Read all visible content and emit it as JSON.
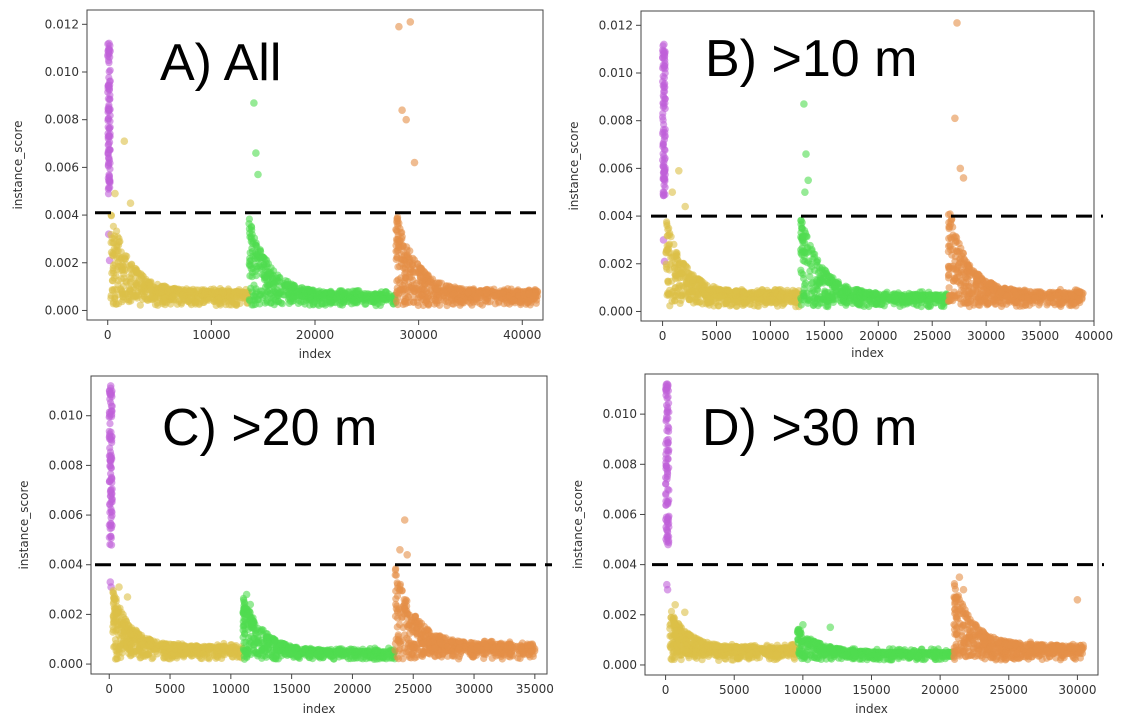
{
  "chart_data": [
    {
      "type": "scatter",
      "title": "A) All",
      "xlabel": "index",
      "ylabel": "instance_score",
      "xlim": [
        -2000,
        42000
      ],
      "ylim": [
        -0.0004,
        0.0126
      ],
      "xticks": [
        0,
        10000,
        20000,
        30000,
        40000
      ],
      "yticks": [
        0.0,
        0.002,
        0.004,
        0.006,
        0.008,
        0.01,
        0.012
      ],
      "threshold": 0.0041,
      "grid": false,
      "series": [
        {
          "color": "#c061d8",
          "x_range": [
            0,
            250
          ],
          "base": 0.006,
          "peak": 0.0112,
          "outliers": [
            [
              120,
              0.0112
            ],
            [
              60,
              0.0109
            ],
            [
              180,
              0.0021
            ],
            [
              90,
              0.0032
            ]
          ]
        },
        {
          "color": "#dcc048",
          "x_range": [
            300,
            13600
          ],
          "base": 0.0008,
          "peak": 0.0042,
          "outliers": [
            [
              700,
              0.0049
            ],
            [
              1600,
              0.0071
            ],
            [
              2200,
              0.0045
            ]
          ]
        },
        {
          "color": "#50dc50",
          "x_range": [
            13600,
            27800
          ],
          "base": 0.0007,
          "peak": 0.004,
          "outliers": [
            [
              14100,
              0.0087
            ],
            [
              14300,
              0.0066
            ],
            [
              14500,
              0.0057
            ]
          ]
        },
        {
          "color": "#e49048",
          "x_range": [
            27800,
            41500
          ],
          "base": 0.0008,
          "peak": 0.0042,
          "outliers": [
            [
              28100,
              0.0119
            ],
            [
              29200,
              0.0121
            ],
            [
              28400,
              0.0084
            ],
            [
              28800,
              0.008
            ],
            [
              29600,
              0.0062
            ]
          ]
        }
      ]
    },
    {
      "type": "scatter",
      "title": "B) >10 m",
      "xlabel": "index",
      "ylabel": "instance_score",
      "xlim": [
        -2000,
        40000
      ],
      "ylim": [
        -0.0004,
        0.0126
      ],
      "xticks": [
        0,
        5000,
        10000,
        15000,
        20000,
        25000,
        30000,
        35000,
        40000
      ],
      "yticks": [
        0.0,
        0.002,
        0.004,
        0.006,
        0.008,
        0.01,
        0.012
      ],
      "threshold": 0.004,
      "grid": false,
      "series": [
        {
          "color": "#c061d8",
          "x_range": [
            0,
            250
          ],
          "base": 0.006,
          "peak": 0.0112,
          "outliers": [
            [
              120,
              0.0112
            ],
            [
              60,
              0.0109
            ],
            [
              180,
              0.0021
            ],
            [
              90,
              0.003
            ]
          ]
        },
        {
          "color": "#dcc048",
          "x_range": [
            300,
            12800
          ],
          "base": 0.0008,
          "peak": 0.004,
          "outliers": [
            [
              900,
              0.005
            ],
            [
              1500,
              0.0059
            ],
            [
              2100,
              0.0044
            ]
          ]
        },
        {
          "color": "#50dc50",
          "x_range": [
            12800,
            26500
          ],
          "base": 0.0007,
          "peak": 0.004,
          "outliers": [
            [
              13100,
              0.0087
            ],
            [
              13300,
              0.0066
            ],
            [
              13500,
              0.0055
            ],
            [
              13200,
              0.005
            ]
          ]
        },
        {
          "color": "#e49048",
          "x_range": [
            26500,
            39000
          ],
          "base": 0.0008,
          "peak": 0.0045,
          "outliers": [
            [
              27300,
              0.0121
            ],
            [
              27100,
              0.0081
            ],
            [
              27600,
              0.006
            ],
            [
              27900,
              0.0056
            ]
          ]
        }
      ]
    },
    {
      "type": "scatter",
      "title": "C) >20 m",
      "xlabel": "index",
      "ylabel": "instance_score",
      "xlim": [
        -1500,
        36000
      ],
      "ylim": [
        -0.0004,
        0.0116
      ],
      "xticks": [
        0,
        5000,
        10000,
        15000,
        20000,
        25000,
        30000,
        35000
      ],
      "yticks": [
        0.0,
        0.002,
        0.004,
        0.006,
        0.008,
        0.01
      ],
      "threshold": 0.004,
      "grid": false,
      "series": [
        {
          "color": "#c061d8",
          "x_range": [
            0,
            250
          ],
          "base": 0.006,
          "peak": 0.0112,
          "outliers": [
            [
              120,
              0.0112
            ],
            [
              60,
              0.0109
            ],
            [
              180,
              0.0048
            ],
            [
              90,
              0.0033
            ],
            [
              150,
              0.0031
            ]
          ]
        },
        {
          "color": "#dcc048",
          "x_range": [
            300,
            11000
          ],
          "base": 0.0007,
          "peak": 0.003,
          "outliers": [
            [
              800,
              0.0031
            ],
            [
              1500,
              0.0027
            ]
          ]
        },
        {
          "color": "#50dc50",
          "x_range": [
            11000,
            23500
          ],
          "base": 0.0005,
          "peak": 0.0027,
          "outliers": [
            [
              11300,
              0.0028
            ],
            [
              11600,
              0.0024
            ]
          ]
        },
        {
          "color": "#e49048",
          "x_range": [
            23500,
            35000
          ],
          "base": 0.0008,
          "peak": 0.004,
          "outliers": [
            [
              24300,
              0.0058
            ],
            [
              23900,
              0.0046
            ],
            [
              24500,
              0.0044
            ]
          ]
        }
      ]
    },
    {
      "type": "scatter",
      "title": "D) >30 m",
      "xlabel": "index",
      "ylabel": "instance_score",
      "xlim": [
        -1500,
        31500
      ],
      "ylim": [
        -0.0004,
        0.0116
      ],
      "xticks": [
        0,
        5000,
        10000,
        15000,
        20000,
        25000,
        30000
      ],
      "yticks": [
        0.0,
        0.002,
        0.004,
        0.006,
        0.008,
        0.01
      ],
      "threshold": 0.004,
      "grid": false,
      "series": [
        {
          "color": "#c061d8",
          "x_range": [
            0,
            250
          ],
          "base": 0.006,
          "peak": 0.0112,
          "outliers": [
            [
              120,
              0.0112
            ],
            [
              60,
              0.0109
            ],
            [
              180,
              0.0048
            ],
            [
              90,
              0.0032
            ],
            [
              150,
              0.003
            ]
          ]
        },
        {
          "color": "#dcc048",
          "x_range": [
            300,
            9600
          ],
          "base": 0.0007,
          "peak": 0.0023,
          "outliers": [
            [
              700,
              0.0024
            ],
            [
              1400,
              0.0021
            ]
          ]
        },
        {
          "color": "#50dc50",
          "x_range": [
            9600,
            21000
          ],
          "base": 0.0005,
          "peak": 0.0015,
          "outliers": [
            [
              10000,
              0.0016
            ],
            [
              12000,
              0.0015
            ]
          ]
        },
        {
          "color": "#e49048",
          "x_range": [
            21000,
            30500
          ],
          "base": 0.0008,
          "peak": 0.0034,
          "outliers": [
            [
              21400,
              0.0035
            ],
            [
              21700,
              0.003
            ],
            [
              30000,
              0.0026
            ]
          ]
        }
      ]
    }
  ]
}
